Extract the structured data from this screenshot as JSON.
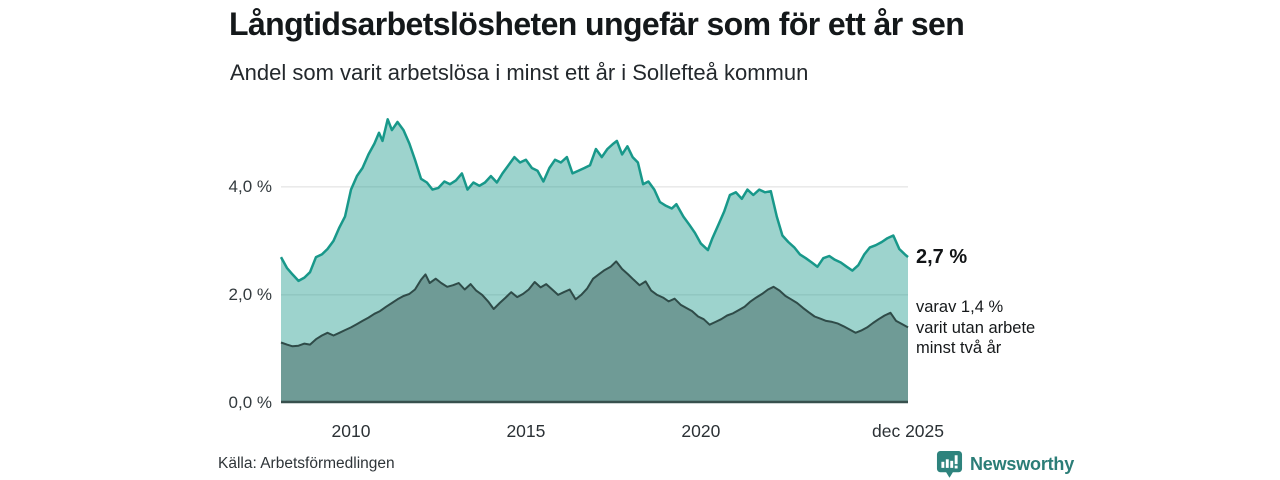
{
  "header": {
    "title": "Långtidsarbetslösheten ungefär som för ett år sen",
    "subtitle": "Andel som varit arbetslösa i minst ett år i Sollefteå kommun"
  },
  "annotations": {
    "total": "2,7 %",
    "subset_lines": [
      "varav 1,4 %",
      "varit utan arbete",
      "minst två år"
    ]
  },
  "footer": {
    "source": "Källa: Arbetsförmedlingen",
    "brand": "Newsworthy"
  },
  "colors": {
    "title": "#14181a",
    "gridline": "#dedede",
    "baseline": "#37504d",
    "total_fill": "rgba(22,150,137,0.42)",
    "total_line": "#18988a",
    "subset_fill": "#6f9b96",
    "subset_line": "#2f4b48",
    "brand_teal": "#2b7d77",
    "icon_teal": "#2e837d"
  },
  "chart_data": {
    "type": "area",
    "title": "Långtidsarbetslösheten ungefär som för ett år sen",
    "subtitle": "Andel som varit arbetslösa i minst ett år i Sollefteå kommun",
    "unit": "%",
    "grid": "horizontal-only",
    "x_range": [
      2008.0,
      2025.92
    ],
    "ylim": [
      0,
      5.33
    ],
    "y_axis_labels": [
      {
        "value": 0,
        "label": "0,0 %"
      },
      {
        "value": 2,
        "label": "2,0 %"
      },
      {
        "value": 4,
        "label": "4,0 %"
      }
    ],
    "gridline_values": [
      2,
      4
    ],
    "x_ticks": [
      {
        "x": 2010,
        "label": "2010"
      },
      {
        "x": 2015,
        "label": "2015"
      },
      {
        "x": 2020,
        "label": "2020"
      },
      {
        "x": 2025.92,
        "label": "dec 2025"
      }
    ],
    "series": [
      {
        "name": "arbetslösa minst ett år (totalt)",
        "end_label": "2,7 %",
        "end_value": 2.7,
        "points": [
          [
            2008.0,
            2.7
          ],
          [
            2008.17,
            2.5
          ],
          [
            2008.33,
            2.38
          ],
          [
            2008.5,
            2.26
          ],
          [
            2008.67,
            2.32
          ],
          [
            2008.83,
            2.42
          ],
          [
            2009.0,
            2.7
          ],
          [
            2009.17,
            2.75
          ],
          [
            2009.33,
            2.85
          ],
          [
            2009.5,
            3.0
          ],
          [
            2009.67,
            3.25
          ],
          [
            2009.83,
            3.45
          ],
          [
            2010.0,
            3.95
          ],
          [
            2010.17,
            4.2
          ],
          [
            2010.33,
            4.35
          ],
          [
            2010.5,
            4.6
          ],
          [
            2010.67,
            4.8
          ],
          [
            2010.8,
            5.0
          ],
          [
            2010.9,
            4.85
          ],
          [
            2011.05,
            5.25
          ],
          [
            2011.17,
            5.05
          ],
          [
            2011.33,
            5.2
          ],
          [
            2011.5,
            5.05
          ],
          [
            2011.67,
            4.8
          ],
          [
            2011.83,
            4.5
          ],
          [
            2012.0,
            4.15
          ],
          [
            2012.17,
            4.08
          ],
          [
            2012.33,
            3.95
          ],
          [
            2012.5,
            3.98
          ],
          [
            2012.67,
            4.1
          ],
          [
            2012.83,
            4.05
          ],
          [
            2013.0,
            4.12
          ],
          [
            2013.17,
            4.25
          ],
          [
            2013.33,
            3.95
          ],
          [
            2013.5,
            4.08
          ],
          [
            2013.67,
            4.02
          ],
          [
            2013.83,
            4.08
          ],
          [
            2014.0,
            4.2
          ],
          [
            2014.17,
            4.08
          ],
          [
            2014.33,
            4.25
          ],
          [
            2014.5,
            4.4
          ],
          [
            2014.67,
            4.55
          ],
          [
            2014.83,
            4.45
          ],
          [
            2015.0,
            4.5
          ],
          [
            2015.17,
            4.35
          ],
          [
            2015.33,
            4.3
          ],
          [
            2015.5,
            4.1
          ],
          [
            2015.67,
            4.35
          ],
          [
            2015.83,
            4.5
          ],
          [
            2016.0,
            4.45
          ],
          [
            2016.17,
            4.55
          ],
          [
            2016.33,
            4.25
          ],
          [
            2016.5,
            4.3
          ],
          [
            2016.67,
            4.35
          ],
          [
            2016.83,
            4.4
          ],
          [
            2017.0,
            4.7
          ],
          [
            2017.17,
            4.55
          ],
          [
            2017.33,
            4.7
          ],
          [
            2017.5,
            4.8
          ],
          [
            2017.6,
            4.85
          ],
          [
            2017.75,
            4.6
          ],
          [
            2017.9,
            4.75
          ],
          [
            2018.05,
            4.55
          ],
          [
            2018.2,
            4.45
          ],
          [
            2018.35,
            4.05
          ],
          [
            2018.5,
            4.1
          ],
          [
            2018.67,
            3.95
          ],
          [
            2018.83,
            3.72
          ],
          [
            2019.0,
            3.65
          ],
          [
            2019.17,
            3.6
          ],
          [
            2019.3,
            3.68
          ],
          [
            2019.5,
            3.45
          ],
          [
            2019.67,
            3.3
          ],
          [
            2019.83,
            3.15
          ],
          [
            2020.0,
            2.95
          ],
          [
            2020.2,
            2.83
          ],
          [
            2020.33,
            3.05
          ],
          [
            2020.5,
            3.3
          ],
          [
            2020.67,
            3.55
          ],
          [
            2020.83,
            3.85
          ],
          [
            2021.0,
            3.9
          ],
          [
            2021.17,
            3.78
          ],
          [
            2021.33,
            3.95
          ],
          [
            2021.5,
            3.85
          ],
          [
            2021.67,
            3.95
          ],
          [
            2021.83,
            3.9
          ],
          [
            2022.0,
            3.92
          ],
          [
            2022.17,
            3.45
          ],
          [
            2022.33,
            3.1
          ],
          [
            2022.5,
            2.98
          ],
          [
            2022.67,
            2.88
          ],
          [
            2022.83,
            2.75
          ],
          [
            2023.0,
            2.68
          ],
          [
            2023.17,
            2.6
          ],
          [
            2023.33,
            2.52
          ],
          [
            2023.5,
            2.68
          ],
          [
            2023.67,
            2.72
          ],
          [
            2023.83,
            2.65
          ],
          [
            2024.0,
            2.6
          ],
          [
            2024.17,
            2.52
          ],
          [
            2024.33,
            2.45
          ],
          [
            2024.5,
            2.55
          ],
          [
            2024.67,
            2.75
          ],
          [
            2024.83,
            2.88
          ],
          [
            2025.0,
            2.92
          ],
          [
            2025.17,
            2.98
          ],
          [
            2025.33,
            3.05
          ],
          [
            2025.5,
            3.1
          ],
          [
            2025.67,
            2.85
          ],
          [
            2025.83,
            2.75
          ],
          [
            2025.92,
            2.7
          ]
        ]
      },
      {
        "name": "varav utan arbete minst två år",
        "end_label": "varav 1,4 % varit utan arbete minst två år",
        "end_value": 1.4,
        "points": [
          [
            2008.0,
            1.12
          ],
          [
            2008.17,
            1.08
          ],
          [
            2008.33,
            1.05
          ],
          [
            2008.5,
            1.06
          ],
          [
            2008.67,
            1.1
          ],
          [
            2008.83,
            1.08
          ],
          [
            2009.0,
            1.18
          ],
          [
            2009.17,
            1.25
          ],
          [
            2009.33,
            1.3
          ],
          [
            2009.5,
            1.25
          ],
          [
            2009.67,
            1.3
          ],
          [
            2009.83,
            1.35
          ],
          [
            2010.0,
            1.4
          ],
          [
            2010.17,
            1.46
          ],
          [
            2010.33,
            1.52
          ],
          [
            2010.5,
            1.58
          ],
          [
            2010.67,
            1.65
          ],
          [
            2010.83,
            1.7
          ],
          [
            2011.0,
            1.78
          ],
          [
            2011.17,
            1.85
          ],
          [
            2011.33,
            1.92
          ],
          [
            2011.5,
            1.98
          ],
          [
            2011.67,
            2.02
          ],
          [
            2011.83,
            2.1
          ],
          [
            2012.0,
            2.28
          ],
          [
            2012.13,
            2.38
          ],
          [
            2012.25,
            2.22
          ],
          [
            2012.42,
            2.3
          ],
          [
            2012.58,
            2.22
          ],
          [
            2012.75,
            2.15
          ],
          [
            2012.92,
            2.18
          ],
          [
            2013.08,
            2.22
          ],
          [
            2013.25,
            2.1
          ],
          [
            2013.42,
            2.2
          ],
          [
            2013.58,
            2.08
          ],
          [
            2013.75,
            2.0
          ],
          [
            2013.92,
            1.88
          ],
          [
            2014.08,
            1.74
          ],
          [
            2014.25,
            1.85
          ],
          [
            2014.42,
            1.95
          ],
          [
            2014.58,
            2.05
          ],
          [
            2014.75,
            1.96
          ],
          [
            2014.92,
            2.02
          ],
          [
            2015.08,
            2.1
          ],
          [
            2015.25,
            2.24
          ],
          [
            2015.42,
            2.14
          ],
          [
            2015.58,
            2.2
          ],
          [
            2015.75,
            2.1
          ],
          [
            2015.92,
            2.0
          ],
          [
            2016.08,
            2.05
          ],
          [
            2016.25,
            2.1
          ],
          [
            2016.42,
            1.92
          ],
          [
            2016.58,
            2.0
          ],
          [
            2016.75,
            2.12
          ],
          [
            2016.92,
            2.3
          ],
          [
            2017.08,
            2.38
          ],
          [
            2017.25,
            2.46
          ],
          [
            2017.42,
            2.52
          ],
          [
            2017.58,
            2.62
          ],
          [
            2017.75,
            2.48
          ],
          [
            2017.92,
            2.38
          ],
          [
            2018.08,
            2.28
          ],
          [
            2018.25,
            2.18
          ],
          [
            2018.42,
            2.25
          ],
          [
            2018.58,
            2.08
          ],
          [
            2018.75,
            2.0
          ],
          [
            2018.92,
            1.95
          ],
          [
            2019.08,
            1.88
          ],
          [
            2019.25,
            1.93
          ],
          [
            2019.42,
            1.82
          ],
          [
            2019.58,
            1.76
          ],
          [
            2019.75,
            1.7
          ],
          [
            2019.92,
            1.6
          ],
          [
            2020.08,
            1.55
          ],
          [
            2020.25,
            1.45
          ],
          [
            2020.42,
            1.5
          ],
          [
            2020.58,
            1.55
          ],
          [
            2020.75,
            1.62
          ],
          [
            2020.92,
            1.66
          ],
          [
            2021.08,
            1.72
          ],
          [
            2021.25,
            1.78
          ],
          [
            2021.42,
            1.88
          ],
          [
            2021.58,
            1.95
          ],
          [
            2021.75,
            2.02
          ],
          [
            2021.92,
            2.1
          ],
          [
            2022.08,
            2.15
          ],
          [
            2022.25,
            2.08
          ],
          [
            2022.42,
            1.98
          ],
          [
            2022.58,
            1.92
          ],
          [
            2022.75,
            1.85
          ],
          [
            2022.92,
            1.76
          ],
          [
            2023.08,
            1.68
          ],
          [
            2023.25,
            1.6
          ],
          [
            2023.42,
            1.56
          ],
          [
            2023.58,
            1.52
          ],
          [
            2023.75,
            1.5
          ],
          [
            2023.92,
            1.47
          ],
          [
            2024.08,
            1.42
          ],
          [
            2024.25,
            1.36
          ],
          [
            2024.42,
            1.3
          ],
          [
            2024.58,
            1.34
          ],
          [
            2024.75,
            1.4
          ],
          [
            2024.92,
            1.48
          ],
          [
            2025.08,
            1.55
          ],
          [
            2025.25,
            1.62
          ],
          [
            2025.42,
            1.67
          ],
          [
            2025.58,
            1.52
          ],
          [
            2025.75,
            1.46
          ],
          [
            2025.92,
            1.4
          ]
        ]
      }
    ]
  }
}
